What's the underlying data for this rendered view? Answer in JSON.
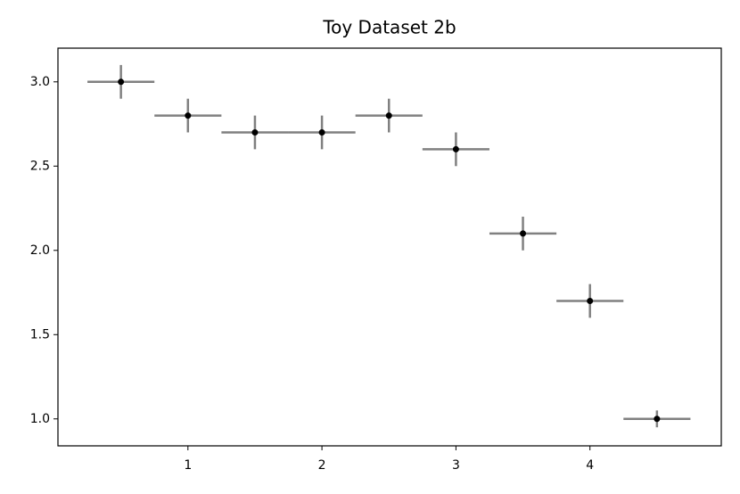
{
  "chart_data": {
    "type": "scatter",
    "title": "Toy Dataset 2b",
    "x": [
      0.5,
      1,
      1.5,
      2,
      2.5,
      3,
      3.5,
      4,
      4.5
    ],
    "values": [
      3.0,
      2.8,
      2.7,
      2.7,
      2.8,
      2.6,
      2.1,
      1.7,
      1.0
    ],
    "yerr": [
      0.1,
      0.1,
      0.1,
      0.1,
      0.1,
      0.1,
      0.1,
      0.1,
      0.05
    ],
    "xerr": [
      0.25,
      0.25,
      0.25,
      0.25,
      0.25,
      0.25,
      0.25,
      0.25,
      0.25
    ],
    "color": "#000000",
    "error_color": "#808080",
    "xlim": [
      0.03,
      4.98
    ],
    "xticks": [
      1,
      2,
      3,
      4
    ],
    "ylim": [
      0.84,
      3.2
    ],
    "yticks": [
      {
        "value": 1,
        "label": "1.0"
      },
      1.5,
      {
        "value": 2,
        "label": "2.0"
      },
      2.5,
      {
        "value": 3,
        "label": "3.0"
      }
    ]
  }
}
